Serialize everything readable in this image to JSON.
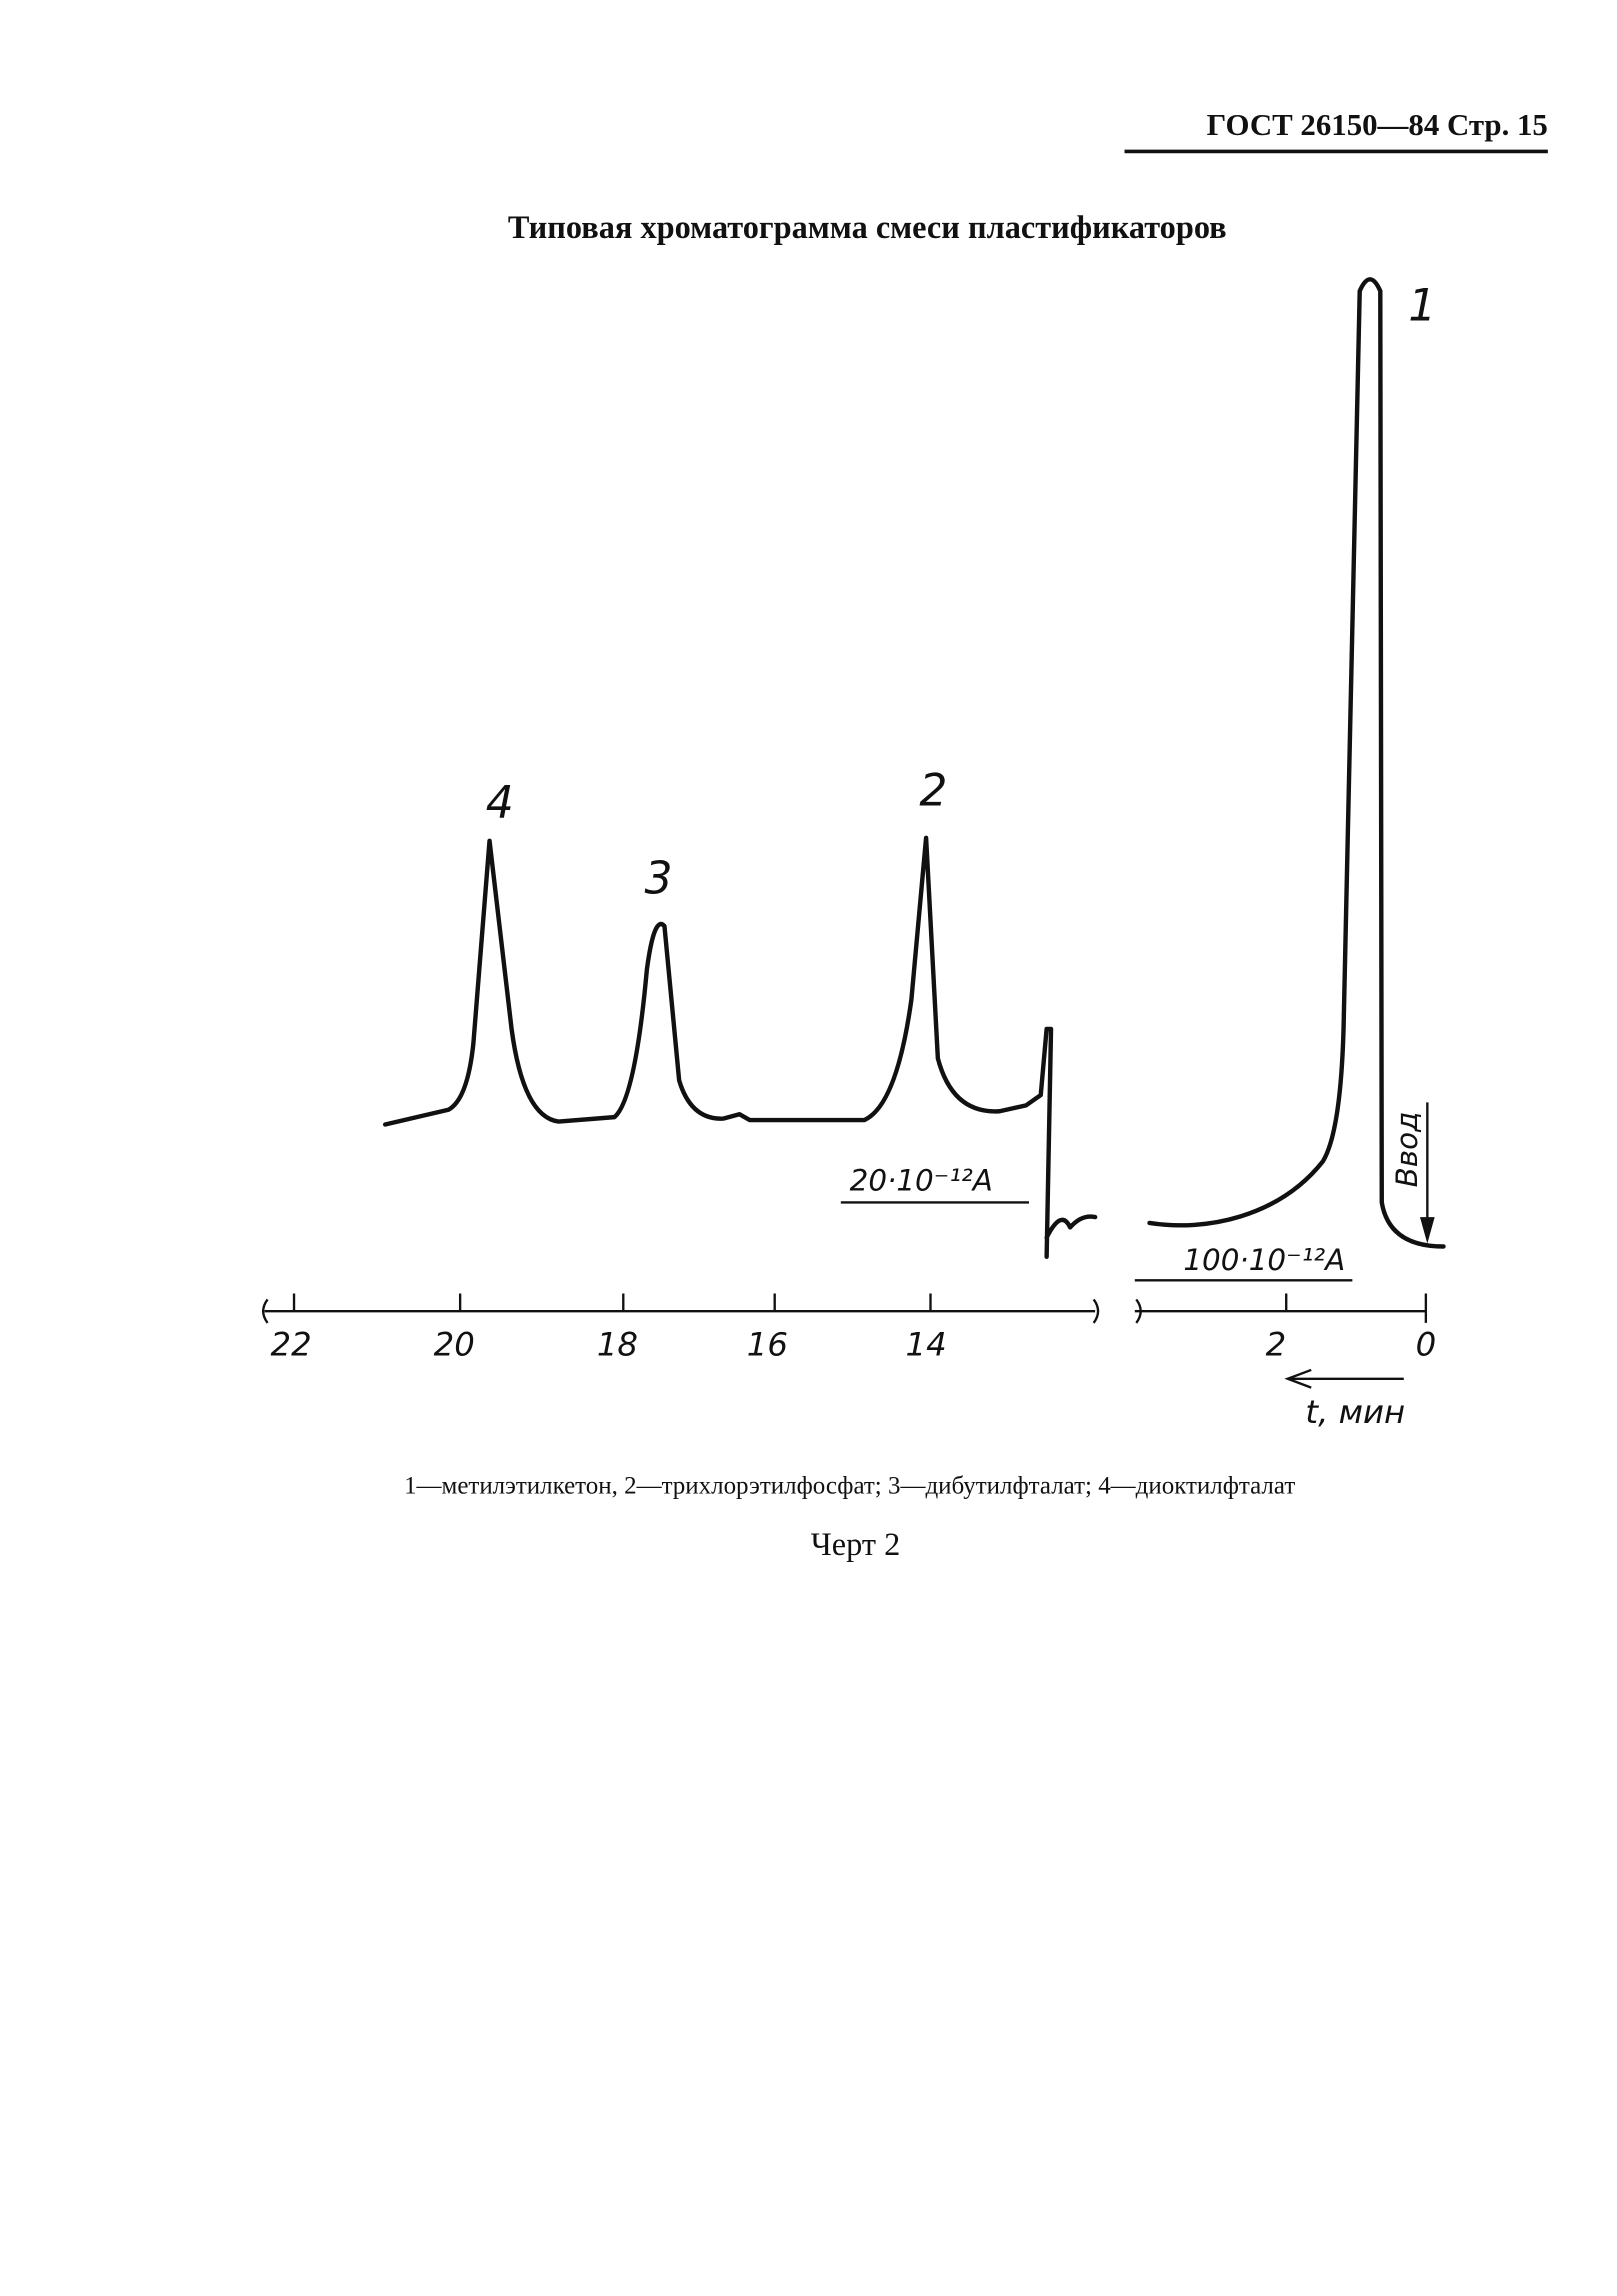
{
  "header": {
    "text": "ГОСТ 26150—84 Стр. 15"
  },
  "title": "Типовая хроматограмма смеси пластификаторов",
  "figure": {
    "peak_labels": [
      "1",
      "2",
      "3",
      "4"
    ],
    "scale_left": "20·10⁻¹²A",
    "scale_right": "100·10⁻¹²A",
    "injection": "Ввод",
    "axis_left_ticks": [
      "22",
      "20",
      "18",
      "16",
      "14"
    ],
    "axis_right_ticks": [
      "2",
      "0"
    ],
    "axis_label": "t, мин"
  },
  "legend": [
    "1—метилэтилкетон,",
    "2—трихлорэтилфосфат;",
    "3—дибутилфталат;",
    "4—диоктилфталат"
  ],
  "caption": "Черт 2"
}
